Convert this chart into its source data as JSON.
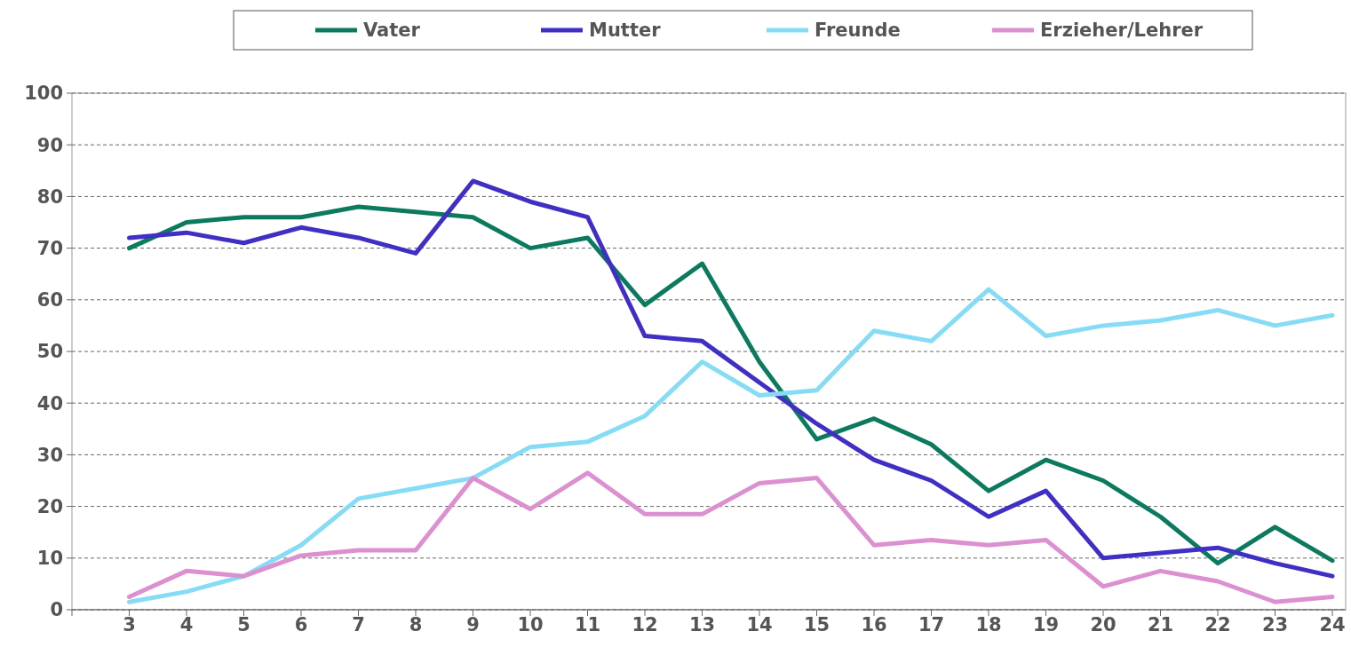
{
  "chart_data": {
    "type": "line",
    "categories": [
      "3",
      "4",
      "5",
      "6",
      "7",
      "8",
      "9",
      "10",
      "11",
      "12",
      "13",
      "14",
      "15",
      "16",
      "17",
      "18",
      "19",
      "20",
      "21",
      "22",
      "23",
      "24"
    ],
    "ylim": [
      0,
      100
    ],
    "yticks": [
      0,
      10,
      20,
      30,
      40,
      50,
      60,
      70,
      80,
      90,
      100
    ],
    "grid": "y",
    "legend": "top",
    "marker": "none",
    "line_style": "solid",
    "series": [
      {
        "name": "Vater",
        "color": "#0b7a5e",
        "values": [
          70,
          75,
          76,
          76,
          78,
          77,
          76,
          70,
          72,
          59,
          67,
          48,
          33,
          37,
          32,
          23,
          29,
          25,
          18,
          9,
          16,
          9.5
        ]
      },
      {
        "name": "Mutter",
        "color": "#3f2fc4",
        "values": [
          72,
          73,
          71,
          74,
          72,
          69,
          83,
          79,
          76,
          53,
          52,
          44,
          36,
          29,
          25,
          18,
          23,
          10,
          11,
          12,
          9,
          6.5
        ]
      },
      {
        "name": "Freunde",
        "color": "#86dcf5",
        "values": [
          1.5,
          3.5,
          6.5,
          12.5,
          21.5,
          23.5,
          25.5,
          31.5,
          32.5,
          37.5,
          48,
          41.5,
          42.5,
          54,
          52,
          62,
          53,
          55,
          56,
          58,
          55,
          57
        ]
      },
      {
        "name": "Erzieher/Lehrer",
        "color": "#dc90d0",
        "values": [
          2.5,
          7.5,
          6.5,
          10.5,
          11.5,
          11.5,
          25.5,
          19.5,
          26.5,
          18.5,
          18.5,
          24.5,
          25.5,
          12.5,
          13.5,
          12.5,
          13.5,
          4.5,
          7.5,
          5.5,
          1.5,
          2.5
        ]
      }
    ]
  }
}
